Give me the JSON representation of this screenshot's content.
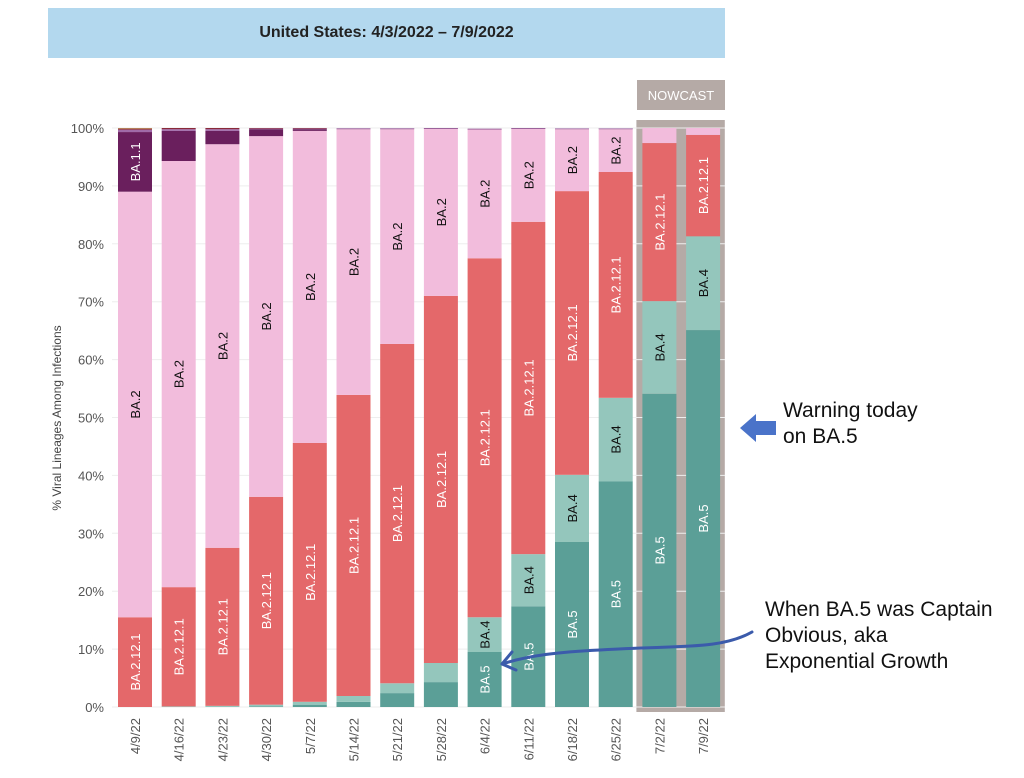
{
  "chart_data": {
    "type": "bar",
    "stacked": true,
    "title": "United States: 4/3/2022 – 7/9/2022",
    "ylabel": "% Viral Lineages Among Infections",
    "xlabel": "",
    "ylim": [
      0,
      100
    ],
    "yticks": [
      "0%",
      "10%",
      "20%",
      "30%",
      "40%",
      "50%",
      "60%",
      "70%",
      "80%",
      "90%",
      "100%"
    ],
    "grid": true,
    "categories": [
      "4/9/22",
      "4/16/22",
      "4/23/22",
      "4/30/22",
      "5/7/22",
      "5/14/22",
      "5/21/22",
      "5/28/22",
      "6/4/22",
      "6/11/22",
      "6/18/22",
      "6/25/22",
      "7/2/22",
      "7/9/22"
    ],
    "nowcast_label": "NOWCAST",
    "nowcast_categories": [
      "7/2/22",
      "7/9/22"
    ],
    "series": [
      {
        "name": "BA.5",
        "color": "#5b9f97",
        "label_color": "#ffffff",
        "values": [
          0,
          0,
          0,
          0.1,
          0.4,
          0.9,
          2.4,
          4.3,
          9.5,
          17.4,
          28.5,
          39.0,
          54.1,
          65.1
        ]
      },
      {
        "name": "BA.4",
        "color": "#94c6bc",
        "label_color": "#111111",
        "values": [
          0,
          0.1,
          0.2,
          0.3,
          0.5,
          1.0,
          1.7,
          3.3,
          6.0,
          9.0,
          11.6,
          14.4,
          16.0,
          16.2
        ]
      },
      {
        "name": "BA.2.12.1",
        "color": "#e4686a",
        "label_color": "#ffffff",
        "values": [
          15.5,
          20.6,
          27.3,
          35.9,
          44.7,
          52.0,
          58.6,
          63.4,
          62.0,
          57.4,
          49.0,
          39.0,
          27.3,
          17.5
        ]
      },
      {
        "name": "BA.2",
        "color": "#f2bcdc",
        "label_color": "#111111",
        "values": [
          73.5,
          73.6,
          69.7,
          62.3,
          53.9,
          45.9,
          37.1,
          28.9,
          22.3,
          16.1,
          10.7,
          7.4,
          2.6,
          1.2
        ]
      },
      {
        "name": "BA.1.1",
        "color": "#6a1f5d",
        "label_color": "#ffffff",
        "values": [
          10.3,
          5.2,
          2.3,
          1.2,
          0.3,
          0.1,
          0.1,
          0.05,
          0.05,
          0.05,
          0.1,
          0.1,
          0,
          0
        ]
      },
      {
        "color": "#a06aa8",
        "values": [
          0.4,
          0.3,
          0.3,
          0.1,
          0.1,
          0.05,
          0.05,
          0.03,
          0.03,
          0.03,
          0.03,
          0.03,
          0,
          0
        ]
      },
      {
        "color": "#8a2a3a",
        "values": [
          0.2,
          0.2,
          0.2,
          0.1,
          0.1,
          0,
          0,
          0,
          0,
          0,
          0,
          0,
          0,
          0
        ]
      },
      {
        "color": "#c9a25a",
        "values": [
          0.1,
          0.0,
          0.0,
          0.0,
          0.0,
          0,
          0,
          0,
          0,
          0,
          0,
          0,
          0,
          0
        ]
      }
    ]
  },
  "annotations": {
    "warning_line1": "Warning today",
    "warning_line2": "on BA.5",
    "captain_line1": "When BA.5 was Captain",
    "captain_line2": "Obvious, aka",
    "captain_line3": "Exponential Growth",
    "arrow_color": "#3b5bab"
  }
}
